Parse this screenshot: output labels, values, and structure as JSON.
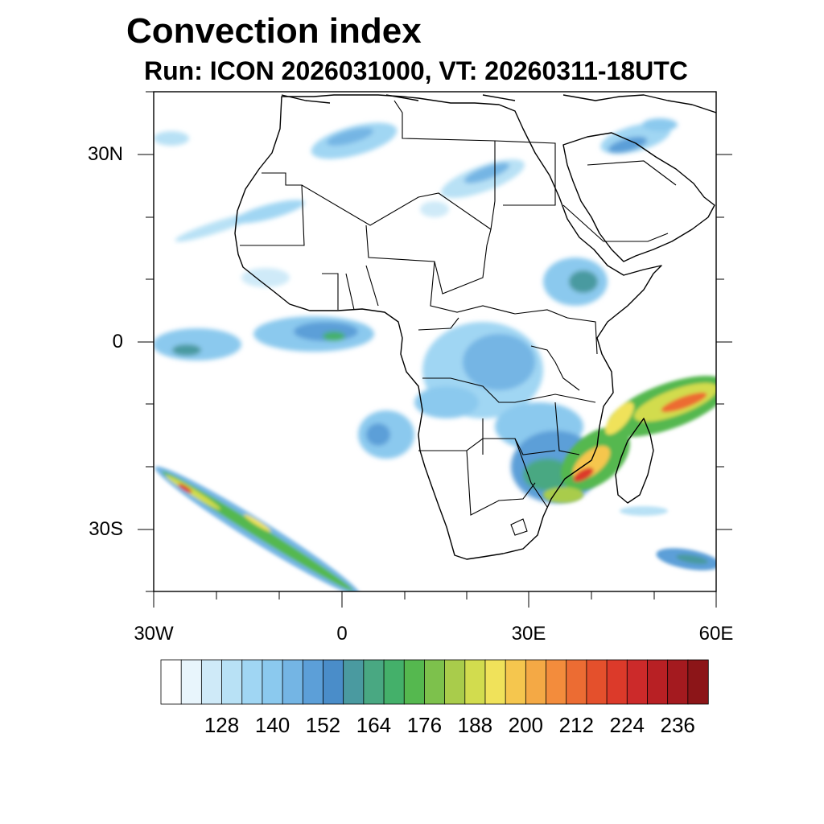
{
  "title": "Convection index",
  "subtitle": "Run: ICON 2026031000,  VT: 20260311-18UTC",
  "axes": {
    "lat_labels": [
      "30N",
      "0",
      "30S"
    ],
    "lon_labels": [
      "30W",
      "0",
      "30E",
      "60E"
    ]
  },
  "colorbar": {
    "labels": [
      "128",
      "140",
      "152",
      "164",
      "176",
      "188",
      "200",
      "212",
      "224",
      "236"
    ],
    "colors": [
      "#ffffff",
      "#e8f5fc",
      "#cfeaf8",
      "#b8e1f5",
      "#a0d6f3",
      "#8bc9ee",
      "#74b5e4",
      "#5c9fd8",
      "#4a8dc9",
      "#4a9aa0",
      "#49a882",
      "#44b06a",
      "#55b84f",
      "#7dc14c",
      "#a9cc4b",
      "#d2dc4e",
      "#f0e25a",
      "#f5c64e",
      "#f4a945",
      "#f38c3c",
      "#ec6c33",
      "#e4502c",
      "#dc3a2a",
      "#cc2a2a",
      "#b82024",
      "#a41a1f",
      "#8c1518"
    ]
  },
  "chart_data": {
    "type": "heatmap",
    "title": "Convection index",
    "subtitle": "Run: ICON 2026031000,  VT: 20260311-18UTC",
    "x_range": [
      -30,
      60
    ],
    "y_range": [
      -40,
      40
    ],
    "x_ticks": [
      "30W",
      "0",
      "30E",
      "60E"
    ],
    "y_ticks": [
      "30N",
      "0",
      "30S"
    ],
    "colorbar_levels": [
      128,
      140,
      152,
      164,
      176,
      188,
      200,
      212,
      224,
      236
    ]
  }
}
